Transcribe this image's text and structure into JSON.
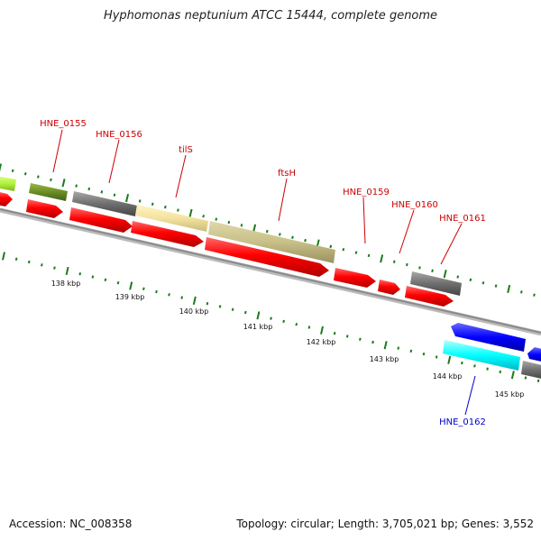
{
  "title": "Hyphomonas neptunium ATCC 15444, complete genome",
  "footer": {
    "accession": "Accession: NC_008358",
    "summary": "Topology: circular; Length: 3,705,021 bp; Genes: 3,552"
  },
  "colors": {
    "cds_red": "#ff0000",
    "gene_gray": "#6f6f6f",
    "khaki": "#c8c088",
    "wheat": "#f3e3a0",
    "olive": "#6b8e23",
    "lime": "#b3f23b",
    "blue": "#0000ff",
    "cyan": "#00ffff",
    "label_red": "#cc0000",
    "label_blue": "#0000cc",
    "tick_green": "#1c7a1c",
    "backbone": "#999999"
  },
  "gene_labels": [
    {
      "text": "HNE_0155",
      "color": "red"
    },
    {
      "text": "HNE_0156",
      "color": "red"
    },
    {
      "text": "tilS",
      "color": "red"
    },
    {
      "text": "ftsH",
      "color": "red"
    },
    {
      "text": "HNE_0159",
      "color": "red"
    },
    {
      "text": "HNE_0160",
      "color": "red"
    },
    {
      "text": "HNE_0161",
      "color": "red"
    },
    {
      "text": "HNE_0162",
      "color": "blue"
    }
  ],
  "kbp_labels": [
    "138 kbp",
    "139 kbp",
    "140 kbp",
    "141 kbp",
    "142 kbp",
    "143 kbp",
    "144 kbp",
    "145 kbp"
  ]
}
